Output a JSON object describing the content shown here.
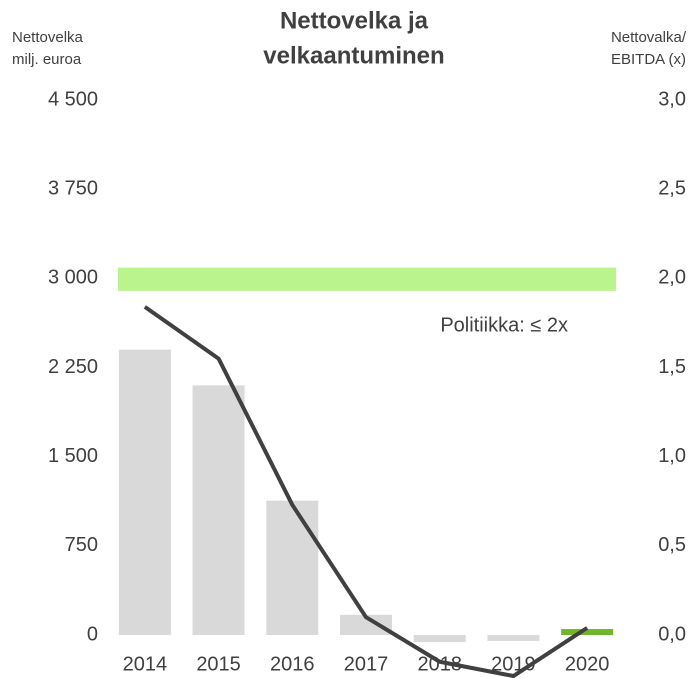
{
  "chart_data": {
    "type": "bar_line",
    "title": [
      "Nettovelka ja",
      "velkaantuminen"
    ],
    "ylabel": [
      "Nettovelka",
      "milj. euroa"
    ],
    "y2label": [
      "Nettovalka/",
      "EBITDA (x)"
    ],
    "categories": [
      "2014",
      "2015",
      "2016",
      "2017",
      "2018",
      "2019",
      "2020"
    ],
    "series": [
      {
        "name": "Nettovelka",
        "type": "bar",
        "colors": [
          "#d9d9d9",
          "#d9d9d9",
          "#d9d9d9",
          "#d9d9d9",
          "#d9d9d9",
          "#d9d9d9",
          "#70b62c"
        ],
        "values": [
          2400,
          2100,
          1130,
          170,
          -60,
          -50,
          50
        ]
      },
      {
        "name": "Nettovalka/EBITDA",
        "type": "line",
        "axis": "y2",
        "color": "#404040",
        "values": [
          1.84,
          1.55,
          0.73,
          0.1,
          -0.15,
          -0.23,
          0.04
        ]
      }
    ],
    "band": {
      "label": "Politiikka: ≤ 2x",
      "from": 1.93,
      "to": 2.06,
      "color": "#b9f48c",
      "axis": "y2"
    },
    "ylim": [
      0,
      4500
    ],
    "yticks": [
      0,
      750,
      {
        "value": 1500,
        "label": "1 500"
      },
      {
        "value": 2250,
        "label": "2 250"
      },
      {
        "value": 3000,
        "label": "3 000"
      },
      {
        "value": 3750,
        "label": "3 750"
      },
      {
        "value": 4500,
        "label": "4 500"
      }
    ],
    "y2lim": [
      0,
      3
    ],
    "y2ticks": [
      {
        "value": 0,
        "label": "0,0"
      },
      {
        "value": 0.5,
        "label": "0,5"
      },
      {
        "value": 1,
        "label": "1,0"
      },
      {
        "value": 1.5,
        "label": "1,5"
      },
      {
        "value": 2,
        "label": "2,0"
      },
      {
        "value": 2.5,
        "label": "2,5"
      },
      {
        "value": 3,
        "label": "3,0"
      }
    ]
  }
}
